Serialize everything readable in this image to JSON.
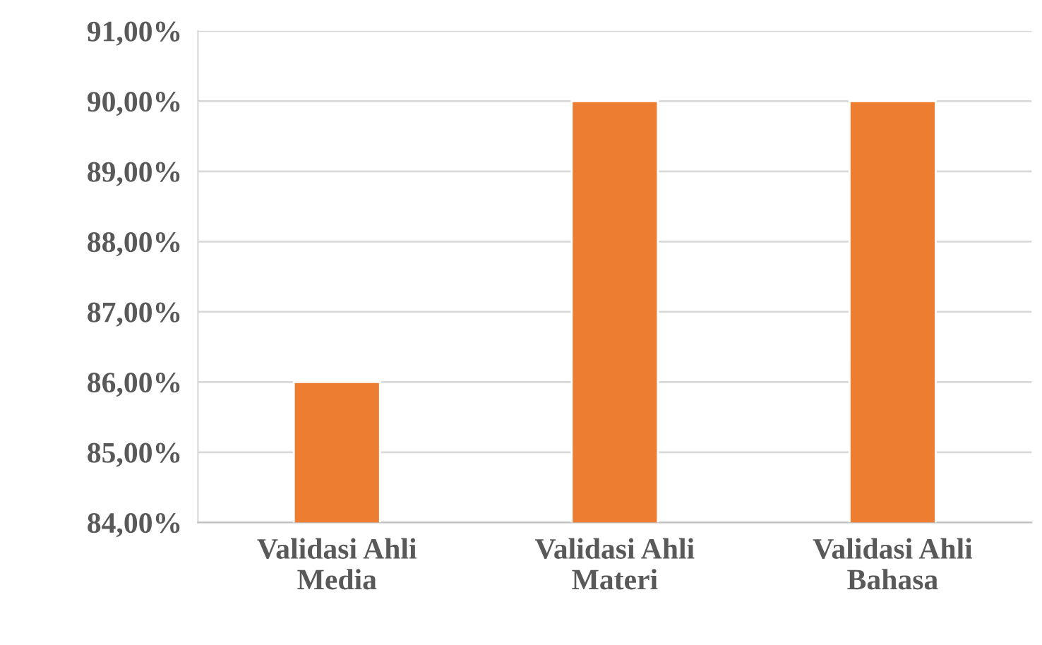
{
  "chart_data": {
    "type": "bar",
    "categories": [
      "Validasi Ahli\nMedia",
      "Validasi Ahli\nMateri",
      "Validasi Ahli\nBahasa"
    ],
    "values": [
      86,
      90,
      90
    ],
    "color": "#ed7d31",
    "ylim": [
      84,
      91
    ],
    "yticks": [
      {
        "value": 84,
        "label": "84,00%"
      },
      {
        "value": 85,
        "label": "85,00%"
      },
      {
        "value": 86,
        "label": "86,00%"
      },
      {
        "value": 87,
        "label": "87,00%"
      },
      {
        "value": 88,
        "label": "88,00%"
      },
      {
        "value": 89,
        "label": "89,00%"
      },
      {
        "value": 90,
        "label": "90,00%"
      },
      {
        "value": 91,
        "label": "91,00%"
      }
    ],
    "grid": "y"
  }
}
